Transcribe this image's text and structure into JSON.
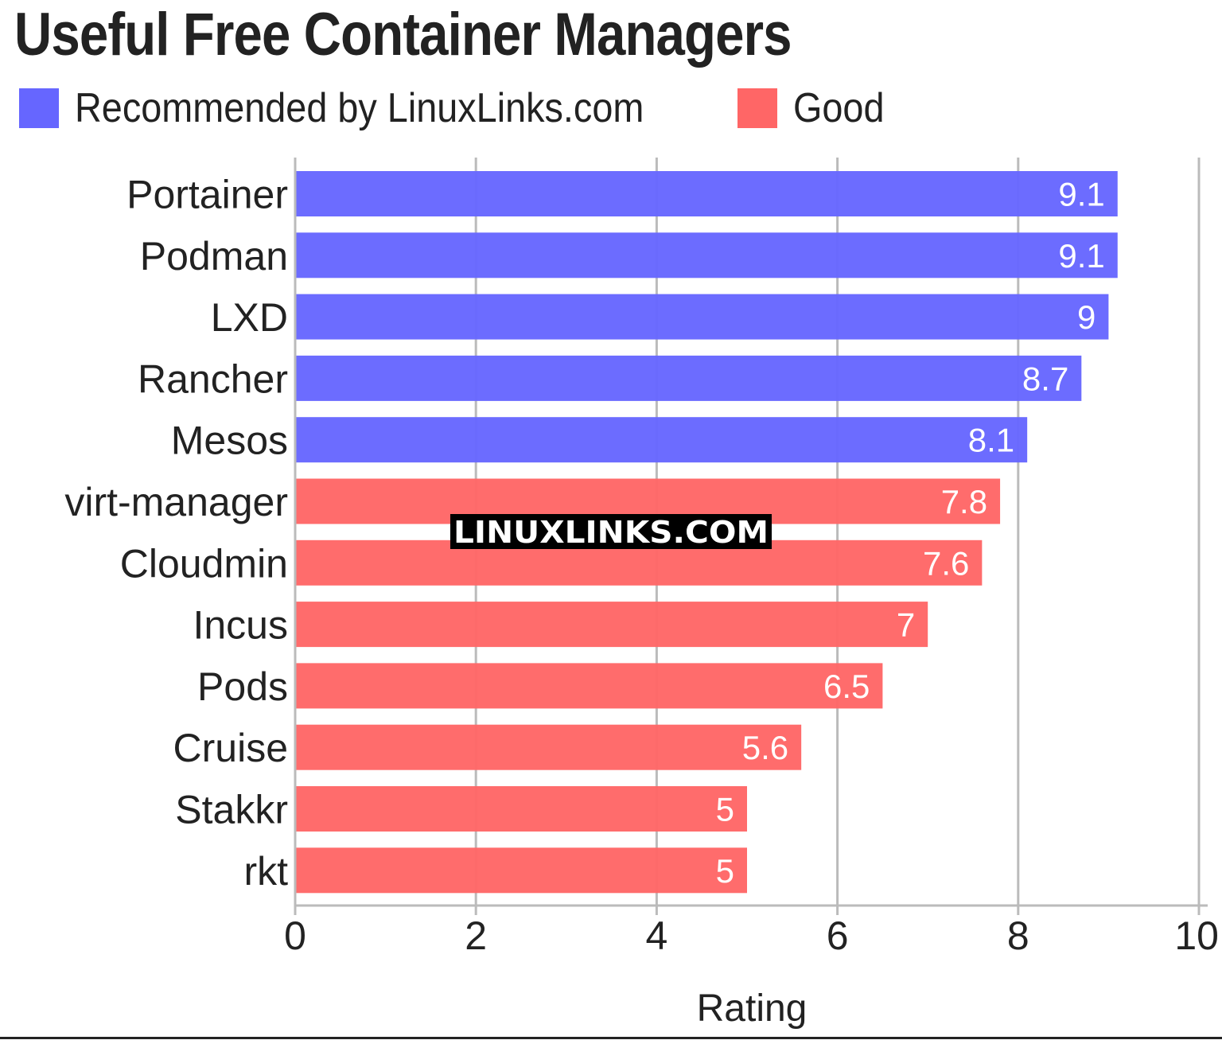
{
  "colors": {
    "recommended": "#6666ff",
    "good": "#ff6666",
    "grid": "#bbbbbb",
    "text": "#222222"
  },
  "chart_data": {
    "type": "bar",
    "orientation": "horizontal",
    "title": "Useful Free Container Managers",
    "xlabel": "Rating",
    "ylabel": "",
    "xlim": [
      0,
      10
    ],
    "xticks": [
      0,
      2,
      4,
      6,
      8,
      10
    ],
    "grid": true,
    "legend_placement": "top-left",
    "legend": [
      {
        "label": "Recommended by LinuxLinks.com",
        "group": "recommended"
      },
      {
        "label": "Good",
        "group": "good"
      }
    ],
    "categories": [
      "Portainer",
      "Podman",
      "LXD",
      "Rancher",
      "Mesos",
      "virt-manager",
      "Cloudmin",
      "Incus",
      "Pods",
      "Cruise",
      "Stakkr",
      "rkt"
    ],
    "values": [
      9.1,
      9.1,
      9,
      8.7,
      8.1,
      7.8,
      7.6,
      7,
      6.5,
      5.6,
      5,
      5
    ],
    "value_labels": [
      "9.1",
      "9.1",
      "9",
      "8.7",
      "8.1",
      "7.8",
      "7.6",
      "7",
      "6.5",
      "5.6",
      "5",
      "5"
    ],
    "groups": [
      "recommended",
      "recommended",
      "recommended",
      "recommended",
      "recommended",
      "good",
      "good",
      "good",
      "good",
      "good",
      "good",
      "good"
    ]
  },
  "watermark": "LINUXLINKS.COM"
}
